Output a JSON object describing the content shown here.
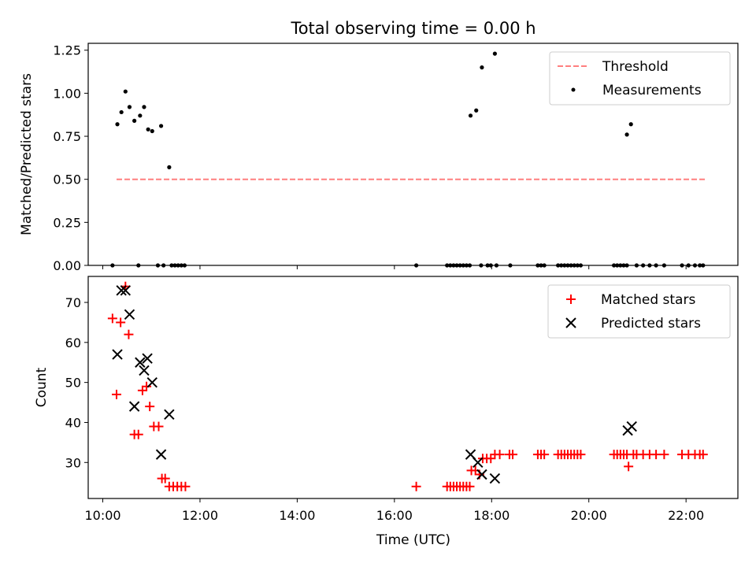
{
  "title": "Total observing time = 0.00 h",
  "chart_data": [
    {
      "type": "scatter",
      "ylabel": "Matched/Predicted stars",
      "ylim": [
        0,
        1.29
      ],
      "yticks": [
        0.0,
        0.25,
        0.5,
        0.75,
        1.0,
        1.25
      ],
      "ytick_labels": [
        "0.00",
        "0.25",
        "0.50",
        "0.75",
        "1.00",
        "1.25"
      ],
      "legend_position": "top-right",
      "legend": [
        {
          "label": "Threshold",
          "kind": "dashed-line",
          "color": "#ff7f7f"
        },
        {
          "label": "Measurements",
          "kind": "dot",
          "color": "#000000"
        }
      ],
      "threshold": {
        "y": 0.5,
        "x_start": "10:17",
        "x_end": "22:25",
        "color": "#ff7f7f"
      },
      "series": [
        {
          "name": "Measurements",
          "color": "#000000",
          "points": [
            [
              "10:18",
              0.82
            ],
            [
              "10:23",
              0.89
            ],
            [
              "10:28",
              1.01
            ],
            [
              "10:33",
              0.92
            ],
            [
              "10:39",
              0.84
            ],
            [
              "10:46",
              0.87
            ],
            [
              "10:51",
              0.92
            ],
            [
              "10:56",
              0.79
            ],
            [
              "11:01",
              0.78
            ],
            [
              "11:12",
              0.81
            ],
            [
              "11:22",
              0.57
            ],
            [
              "10:12",
              0.0
            ],
            [
              "10:44",
              0.0
            ],
            [
              "11:08",
              0.0
            ],
            [
              "11:15",
              0.0
            ],
            [
              "11:25",
              0.0
            ],
            [
              "11:29",
              0.0
            ],
            [
              "11:33",
              0.0
            ],
            [
              "11:37",
              0.0
            ],
            [
              "11:41",
              0.0
            ],
            [
              "17:34",
              0.87
            ],
            [
              "17:41",
              0.9
            ],
            [
              "17:48",
              1.15
            ],
            [
              "18:04",
              1.23
            ],
            [
              "16:27",
              0.0
            ],
            [
              "17:05",
              0.0
            ],
            [
              "17:09",
              0.0
            ],
            [
              "17:13",
              0.0
            ],
            [
              "17:17",
              0.0
            ],
            [
              "17:21",
              0.0
            ],
            [
              "17:25",
              0.0
            ],
            [
              "17:29",
              0.0
            ],
            [
              "17:33",
              0.0
            ],
            [
              "17:47",
              0.0
            ],
            [
              "17:55",
              0.0
            ],
            [
              "17:59",
              0.0
            ],
            [
              "18:06",
              0.0
            ],
            [
              "18:23",
              0.0
            ],
            [
              "18:57",
              0.0
            ],
            [
              "19:01",
              0.0
            ],
            [
              "19:05",
              0.0
            ],
            [
              "19:22",
              0.0
            ],
            [
              "19:26",
              0.0
            ],
            [
              "19:30",
              0.0
            ],
            [
              "19:34",
              0.0
            ],
            [
              "19:38",
              0.0
            ],
            [
              "19:42",
              0.0
            ],
            [
              "19:46",
              0.0
            ],
            [
              "19:50",
              0.0
            ],
            [
              "20:47",
              0.76
            ],
            [
              "20:52",
              0.82
            ],
            [
              "20:31",
              0.0
            ],
            [
              "20:35",
              0.0
            ],
            [
              "20:39",
              0.0
            ],
            [
              "20:43",
              0.0
            ],
            [
              "20:47",
              0.0
            ],
            [
              "20:59",
              0.0
            ],
            [
              "21:07",
              0.0
            ],
            [
              "21:15",
              0.0
            ],
            [
              "21:23",
              0.0
            ],
            [
              "21:33",
              0.0
            ],
            [
              "21:55",
              0.0
            ],
            [
              "22:03",
              0.0
            ],
            [
              "22:11",
              0.0
            ],
            [
              "22:17",
              0.0
            ],
            [
              "22:21",
              0.0
            ]
          ]
        }
      ]
    },
    {
      "type": "scatter",
      "xlabel": "Time (UTC)",
      "ylabel": "Count",
      "xlim": [
        "09:42",
        "23:04"
      ],
      "ylim": [
        21,
        76.5
      ],
      "yticks": [
        30,
        40,
        50,
        60,
        70
      ],
      "ytick_labels": [
        "30",
        "40",
        "50",
        "60",
        "70"
      ],
      "xticks": [
        "10:00",
        "12:00",
        "14:00",
        "16:00",
        "18:00",
        "20:00",
        "22:00"
      ],
      "legend_position": "top-right",
      "legend": [
        {
          "label": "Matched stars",
          "kind": "plus",
          "color": "#ff0000"
        },
        {
          "label": "Predicted stars",
          "kind": "cross",
          "color": "#000000"
        }
      ],
      "series": [
        {
          "name": "Matched stars",
          "color": "#ff0000",
          "marker": "plus",
          "points": [
            [
              "10:12",
              66
            ],
            [
              "10:17",
              47
            ],
            [
              "10:22",
              65
            ],
            [
              "10:28",
              74
            ],
            [
              "10:32",
              62
            ],
            [
              "10:39",
              37
            ],
            [
              "10:44",
              37
            ],
            [
              "10:49",
              48
            ],
            [
              "10:54",
              49
            ],
            [
              "10:58",
              44
            ],
            [
              "11:03",
              39
            ],
            [
              "11:09",
              39
            ],
            [
              "11:13",
              26
            ],
            [
              "11:17",
              26
            ],
            [
              "11:22",
              24
            ],
            [
              "11:27",
              24
            ],
            [
              "11:32",
              24
            ],
            [
              "11:37",
              24
            ],
            [
              "11:42",
              24
            ],
            [
              "16:27",
              24
            ],
            [
              "17:05",
              24
            ],
            [
              "17:09",
              24
            ],
            [
              "17:13",
              24
            ],
            [
              "17:17",
              24
            ],
            [
              "17:21",
              24
            ],
            [
              "17:25",
              24
            ],
            [
              "17:29",
              24
            ],
            [
              "17:33",
              24
            ],
            [
              "17:35",
              28
            ],
            [
              "17:40",
              28
            ],
            [
              "17:45",
              27
            ],
            [
              "17:49",
              31
            ],
            [
              "17:54",
              31
            ],
            [
              "17:59",
              31
            ],
            [
              "18:04",
              32
            ],
            [
              "18:10",
              32
            ],
            [
              "18:22",
              32
            ],
            [
              "18:26",
              32
            ],
            [
              "18:57",
              32
            ],
            [
              "19:01",
              32
            ],
            [
              "19:05",
              32
            ],
            [
              "19:22",
              32
            ],
            [
              "19:26",
              32
            ],
            [
              "19:30",
              32
            ],
            [
              "19:34",
              32
            ],
            [
              "19:38",
              32
            ],
            [
              "19:42",
              32
            ],
            [
              "19:46",
              32
            ],
            [
              "19:50",
              32
            ],
            [
              "20:31",
              32
            ],
            [
              "20:35",
              32
            ],
            [
              "20:39",
              32
            ],
            [
              "20:43",
              32
            ],
            [
              "20:47",
              32
            ],
            [
              "20:49",
              29
            ],
            [
              "20:55",
              32
            ],
            [
              "20:59",
              32
            ],
            [
              "21:07",
              32
            ],
            [
              "21:15",
              32
            ],
            [
              "21:23",
              32
            ],
            [
              "21:33",
              32
            ],
            [
              "21:55",
              32
            ],
            [
              "22:03",
              32
            ],
            [
              "22:11",
              32
            ],
            [
              "22:17",
              32
            ],
            [
              "22:21",
              32
            ]
          ]
        },
        {
          "name": "Predicted stars",
          "color": "#000000",
          "marker": "cross",
          "points": [
            [
              "10:18",
              57
            ],
            [
              "10:23",
              73
            ],
            [
              "10:28",
              73
            ],
            [
              "10:33",
              67
            ],
            [
              "10:39",
              44
            ],
            [
              "10:46",
              55
            ],
            [
              "10:51",
              53
            ],
            [
              "10:55",
              56
            ],
            [
              "11:01",
              50
            ],
            [
              "11:12",
              32
            ],
            [
              "11:22",
              42
            ],
            [
              "17:34",
              32
            ],
            [
              "17:43",
              30
            ],
            [
              "17:48",
              27
            ],
            [
              "18:04",
              26
            ],
            [
              "20:48",
              38
            ],
            [
              "20:53",
              39
            ]
          ]
        }
      ]
    }
  ]
}
